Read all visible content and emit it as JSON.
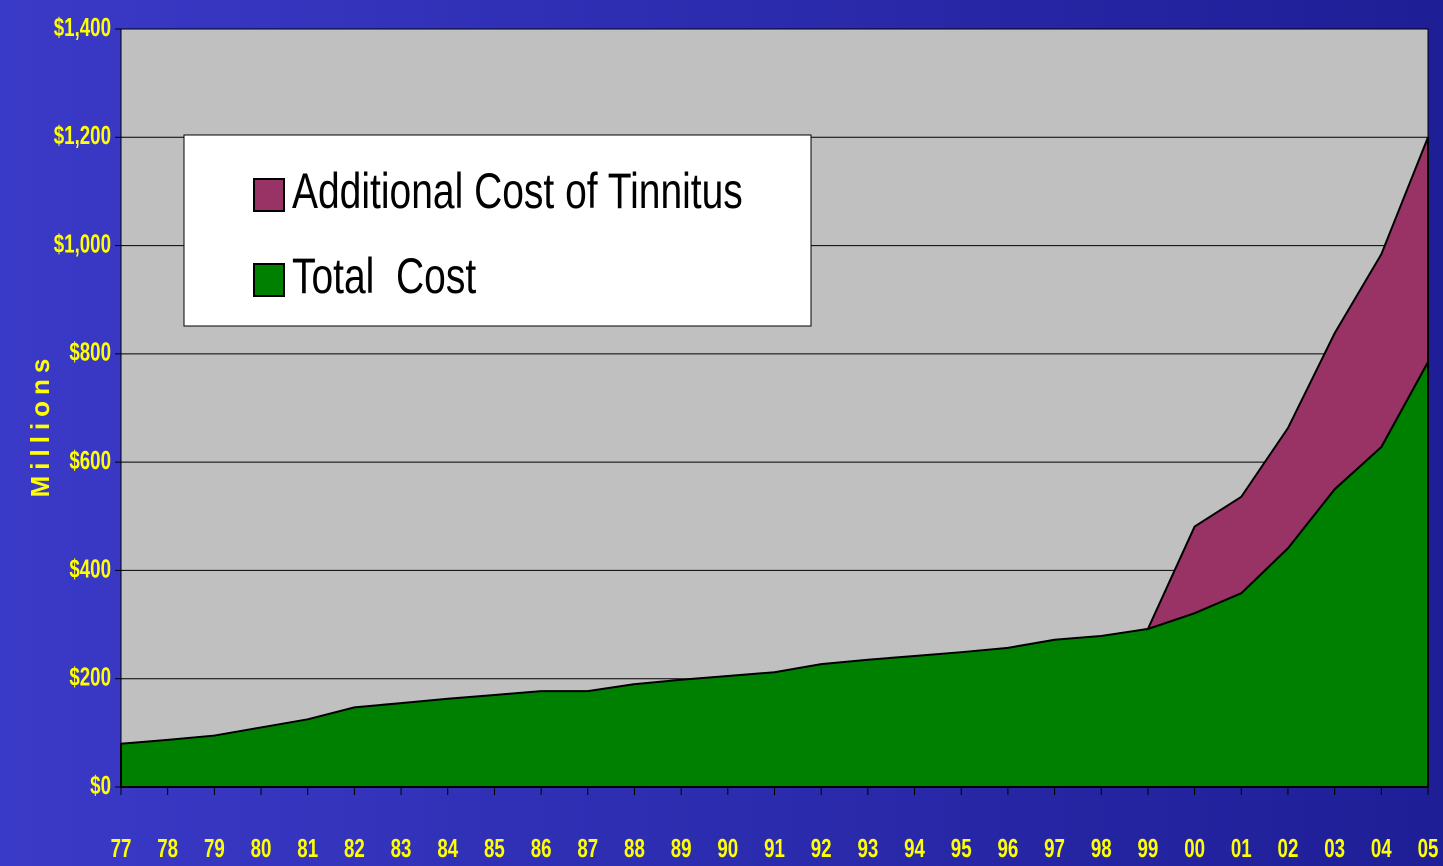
{
  "chart_data": {
    "type": "stacked_area",
    "y_label": "Millions",
    "categories": [
      "77",
      "78",
      "79",
      "80",
      "81",
      "82",
      "83",
      "84",
      "85",
      "86",
      "87",
      "88",
      "89",
      "90",
      "91",
      "92",
      "93",
      "94",
      "95",
      "96",
      "97",
      "98",
      "99",
      "00",
      "01",
      "02",
      "03",
      "04",
      "05"
    ],
    "series": [
      {
        "name": "Total  Cost",
        "color": "#008000",
        "values": [
          80,
          87,
          95,
          110,
          125,
          147,
          155,
          163,
          170,
          177,
          177,
          190,
          198,
          205,
          212,
          227,
          235,
          242,
          249,
          257,
          272,
          279,
          292,
          321,
          358,
          441,
          550,
          628,
          785
        ]
      },
      {
        "name": "Additional Cost of Tinnitus",
        "color": "#993366",
        "values": [
          null,
          null,
          null,
          null,
          null,
          null,
          null,
          null,
          null,
          null,
          null,
          null,
          null,
          null,
          null,
          null,
          null,
          null,
          null,
          null,
          null,
          null,
          0,
          160,
          178,
          222,
          288,
          356,
          415
        ]
      }
    ],
    "ylim": [
      0,
      1400
    ],
    "yticks": [
      {
        "value": 0,
        "label": "$0"
      },
      {
        "value": 200,
        "label": "$200"
      },
      {
        "value": 400,
        "label": "$400"
      },
      {
        "value": 600,
        "label": "$600"
      },
      {
        "value": 800,
        "label": "$800"
      },
      {
        "value": 1000,
        "label": "$1,000"
      },
      {
        "value": 1200,
        "label": "$1,200"
      },
      {
        "value": 1400,
        "label": "$1,400"
      }
    ],
    "grid": true,
    "legend": "upper left",
    "plot_background": "#c0c0c0"
  }
}
